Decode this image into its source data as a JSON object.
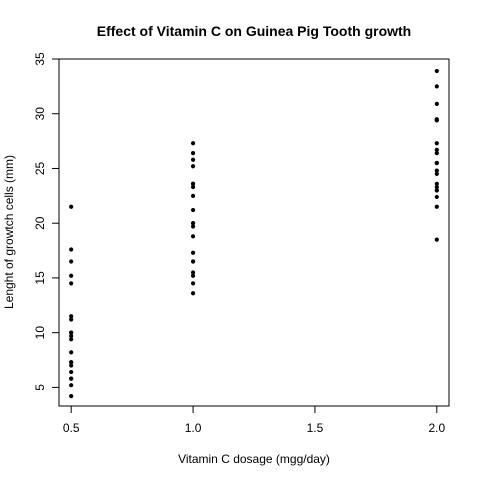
{
  "chart_data": {
    "type": "scatter",
    "title": "Effect of Vitamin C on Guinea Pig Tooth growth",
    "xlabel": "Vitamin C dosage (mgg/day)",
    "ylabel": "Lenght of growtch cells (mm)",
    "xlim": [
      0.45,
      2.05
    ],
    "ylim": [
      3.3,
      35.0
    ],
    "x_ticks": [
      0.5,
      1.0,
      1.5,
      2.0
    ],
    "x_tick_labels": [
      "0.5",
      "1.0",
      "1.5",
      "2.0"
    ],
    "y_ticks": [
      5,
      10,
      15,
      20,
      25,
      30,
      35
    ],
    "y_tick_labels": [
      "5",
      "10",
      "15",
      "20",
      "25",
      "30",
      "35"
    ],
    "grid": false,
    "legend": "none",
    "point_color": "#000000",
    "series": [
      {
        "x": [
          0.5,
          0.5,
          0.5,
          0.5,
          0.5,
          0.5,
          0.5,
          0.5,
          0.5,
          0.5,
          0.5,
          0.5,
          0.5,
          0.5,
          0.5,
          0.5,
          0.5,
          0.5,
          0.5,
          0.5,
          1.0,
          1.0,
          1.0,
          1.0,
          1.0,
          1.0,
          1.0,
          1.0,
          1.0,
          1.0,
          1.0,
          1.0,
          1.0,
          1.0,
          1.0,
          1.0,
          1.0,
          1.0,
          1.0,
          1.0,
          2.0,
          2.0,
          2.0,
          2.0,
          2.0,
          2.0,
          2.0,
          2.0,
          2.0,
          2.0,
          2.0,
          2.0,
          2.0,
          2.0,
          2.0,
          2.0,
          2.0,
          2.0,
          2.0,
          2.0
        ],
        "y": [
          4.2,
          5.2,
          5.8,
          6.4,
          7.0,
          7.3,
          8.2,
          9.4,
          9.7,
          10.0,
          11.2,
          11.5,
          14.5,
          15.2,
          16.5,
          17.6,
          21.5,
          10.0,
          7.3,
          5.8,
          13.6,
          14.5,
          15.2,
          15.5,
          16.5,
          17.3,
          18.8,
          19.7,
          20.0,
          21.2,
          22.5,
          23.3,
          23.6,
          25.2,
          25.8,
          26.4,
          27.3,
          20.0,
          16.5,
          23.6,
          18.5,
          21.5,
          22.4,
          23.0,
          23.3,
          23.6,
          24.5,
          24.8,
          25.5,
          26.4,
          27.3,
          29.4,
          29.5,
          30.9,
          32.5,
          33.9,
          26.7,
          25.5,
          23.0,
          29.4
        ]
      }
    ]
  }
}
